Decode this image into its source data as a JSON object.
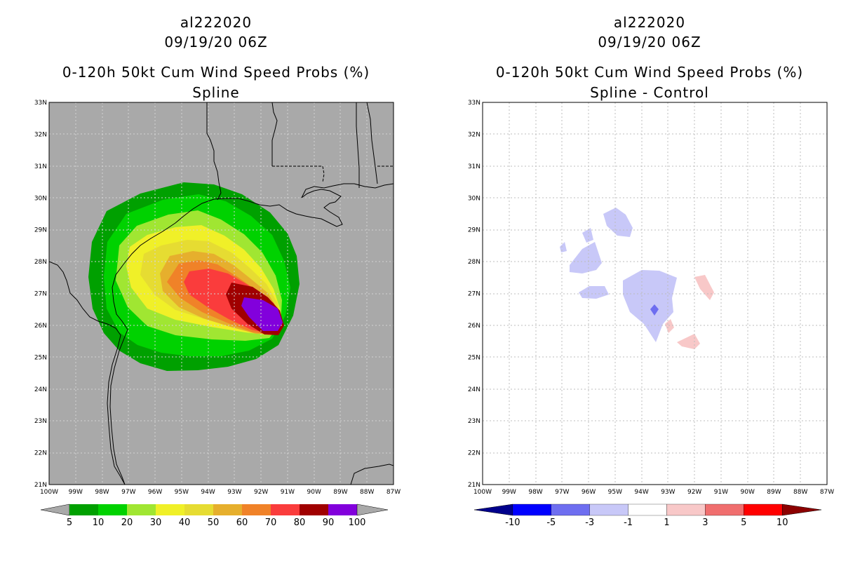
{
  "left_panel": {
    "storm_id": "al222020",
    "datetime": "09/19/20 06Z",
    "product": "0-120h 50kt Cum Wind Speed Probs (%)",
    "subtitle": "Spline",
    "background_color": "#a9a9a9",
    "contour_colors": [
      "#00a000",
      "#00d200",
      "#a0e632",
      "#f0f028",
      "#e6dc32",
      "#e6af2d",
      "#f08228",
      "#fa3c3c",
      "#a00000",
      "#8200dc"
    ],
    "colorbar_labels": [
      "5",
      "10",
      "20",
      "30",
      "40",
      "50",
      "60",
      "70",
      "80",
      "90",
      "100"
    ]
  },
  "right_panel": {
    "storm_id": "al222020",
    "datetime": "09/19/20 06Z",
    "product": "0-120h 50kt Cum Wind Speed Probs (%)",
    "subtitle": "Spline - Control",
    "background_color": "#ffffff",
    "colorbar_colors": [
      "#00008c",
      "#0000ff",
      "#6e6ef0",
      "#c8c8f8",
      "#ffffff",
      "#f8c8c8",
      "#f06e6e",
      "#ff0000",
      "#8c0000"
    ],
    "colorbar_labels": [
      "-10",
      "-5",
      "-3",
      "-1",
      "1",
      "3",
      "5",
      "10"
    ]
  },
  "axes": {
    "lat_labels": [
      "21N",
      "22N",
      "23N",
      "24N",
      "25N",
      "26N",
      "27N",
      "28N",
      "29N",
      "30N",
      "31N",
      "32N",
      "33N"
    ],
    "lon_labels": [
      "100W",
      "99W",
      "98W",
      "97W",
      "96W",
      "95W",
      "94W",
      "93W",
      "92W",
      "91W",
      "90W",
      "89W",
      "88W",
      "87W"
    ]
  }
}
